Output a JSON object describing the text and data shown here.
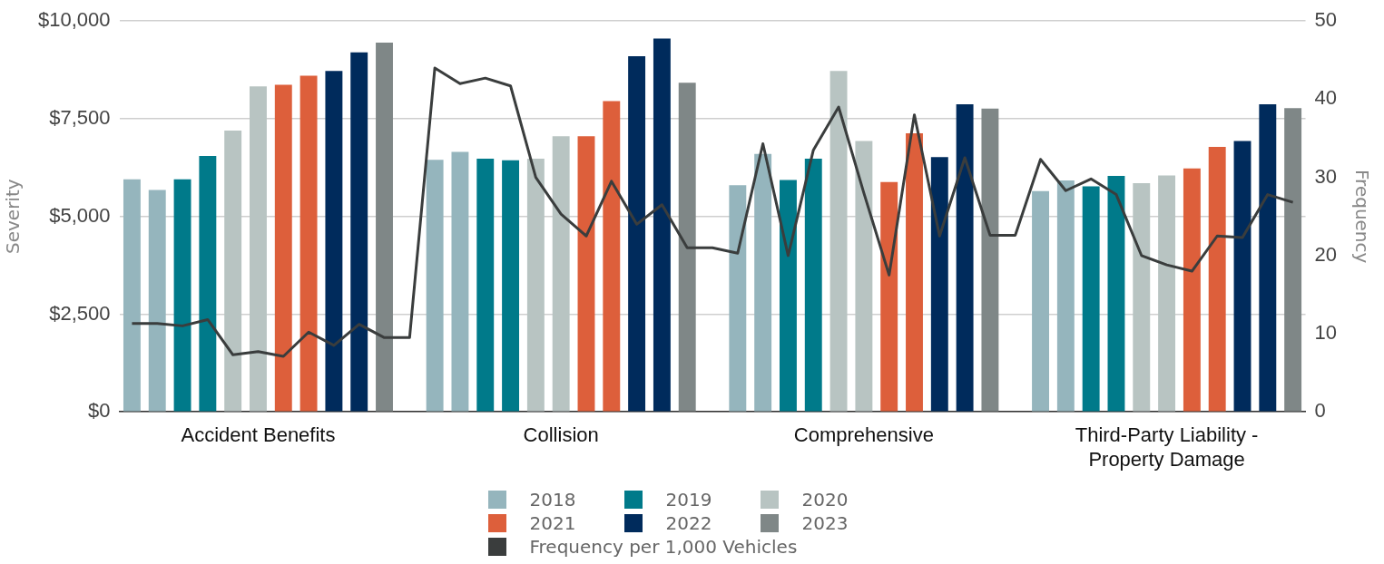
{
  "chart_data": {
    "type": "bar",
    "xlabel": null,
    "ylabel": "Severity",
    "y2label": "Frequency",
    "categories": [
      null,
      null,
      null,
      null,
      null,
      "Accident Benefits",
      null,
      null,
      null,
      null,
      null,
      null,
      null,
      null,
      null,
      null,
      null,
      "Collision",
      null,
      null,
      null,
      null,
      null,
      null,
      null,
      null,
      null,
      null,
      null,
      "Comprehensive",
      null,
      null,
      null,
      null,
      null,
      null,
      null,
      null,
      null,
      null,
      null,
      "Third-Party Liability - Property Damage",
      null,
      null,
      null,
      null,
      null
    ],
    "series": [
      {
        "name": "2018",
        "color": "#95b5bd",
        "values": [
          5950,
          5680,
          null,
          null,
          null,
          null,
          null,
          null,
          null,
          null,
          null,
          null,
          6450,
          6650,
          null,
          null,
          null,
          null,
          null,
          null,
          null,
          null,
          null,
          null,
          5800,
          6600,
          null,
          null,
          null,
          null,
          null,
          null,
          null,
          null,
          null,
          null,
          5650,
          5920,
          null,
          null,
          null,
          null,
          null,
          null,
          null,
          null,
          null
        ]
      },
      {
        "name": "2019",
        "color": "#007a8a",
        "values": [
          null,
          null,
          5950,
          6550,
          null,
          null,
          null,
          null,
          null,
          null,
          null,
          null,
          null,
          null,
          6480,
          6440,
          null,
          null,
          null,
          null,
          null,
          null,
          null,
          null,
          null,
          null,
          5930,
          6480,
          null,
          null,
          null,
          null,
          null,
          null,
          null,
          null,
          null,
          null,
          5770,
          6040,
          null,
          null,
          null,
          null,
          null,
          null,
          null
        ]
      },
      {
        "name": "2020",
        "color": "#b8c4c2",
        "values": [
          null,
          null,
          null,
          null,
          7200,
          8330,
          null,
          null,
          null,
          null,
          null,
          null,
          null,
          null,
          null,
          null,
          6480,
          7050,
          null,
          null,
          null,
          null,
          null,
          null,
          null,
          null,
          null,
          null,
          8720,
          6930,
          null,
          null,
          null,
          null,
          null,
          null,
          null,
          null,
          null,
          null,
          5850,
          6050,
          null,
          null,
          null,
          null,
          null
        ]
      },
      {
        "name": "2021",
        "color": "#dd5f3b",
        "values": [
          null,
          null,
          null,
          null,
          null,
          null,
          8370,
          8600,
          null,
          null,
          null,
          null,
          null,
          null,
          null,
          null,
          null,
          null,
          7050,
          7950,
          null,
          null,
          null,
          null,
          null,
          null,
          null,
          null,
          null,
          null,
          5880,
          7130,
          null,
          null,
          null,
          null,
          null,
          null,
          null,
          null,
          null,
          null,
          6230,
          6780,
          null,
          null,
          null
        ]
      },
      {
        "name": "2022",
        "color": "#002b5c",
        "values": [
          null,
          null,
          null,
          null,
          null,
          null,
          null,
          null,
          8720,
          9200,
          null,
          null,
          null,
          null,
          null,
          null,
          null,
          null,
          null,
          null,
          9100,
          9550,
          null,
          null,
          null,
          null,
          null,
          null,
          null,
          null,
          null,
          null,
          6520,
          7870,
          null,
          null,
          null,
          null,
          null,
          null,
          null,
          null,
          null,
          null,
          6930,
          7870,
          null
        ]
      },
      {
        "name": "2023",
        "color": "#7f8787",
        "values": [
          null,
          null,
          null,
          null,
          null,
          null,
          null,
          null,
          null,
          null,
          9450,
          null,
          null,
          null,
          null,
          null,
          null,
          null,
          null,
          null,
          null,
          null,
          8420,
          null,
          null,
          null,
          null,
          null,
          null,
          null,
          null,
          null,
          null,
          null,
          7760,
          null,
          null,
          null,
          null,
          null,
          null,
          null,
          null,
          null,
          null,
          null,
          7770
        ]
      },
      {
        "name": "Frequency per 1,000 Vehicles",
        "type": "line",
        "axis": "y2",
        "color": "#3a3d3d",
        "values": [
          11.3,
          11.3,
          11,
          11.8,
          7.3,
          7.7,
          7.1,
          10.2,
          8.5,
          11.2,
          9.5,
          9.5,
          44,
          42,
          42.7,
          41.7,
          30,
          25.3,
          22.5,
          29.5,
          24,
          26.5,
          21,
          21,
          20.3,
          34.3,
          20,
          33.5,
          39,
          28,
          17.5,
          38,
          22.5,
          32.5,
          22.6,
          22.6,
          32.3,
          28.3,
          29.8,
          27.8,
          20,
          18.8,
          18,
          22.5,
          22.3,
          27.8,
          26.8
        ]
      }
    ],
    "ylim": [
      0,
      10000
    ],
    "yticks": [
      {
        "value": 0,
        "label": "$0"
      },
      {
        "value": 2500,
        "label": "$2,500"
      },
      {
        "value": 5000,
        "label": "$5,000"
      },
      {
        "value": 7500,
        "label": "$7,500"
      },
      {
        "value": 10000,
        "label": "$10,000"
      }
    ],
    "y2lim": [
      0,
      50
    ],
    "y2ticks": [
      0,
      10,
      20,
      30,
      40,
      50
    ],
    "grid": "y",
    "legend": "bottom",
    "marker": "none",
    "line_style": "solid"
  }
}
